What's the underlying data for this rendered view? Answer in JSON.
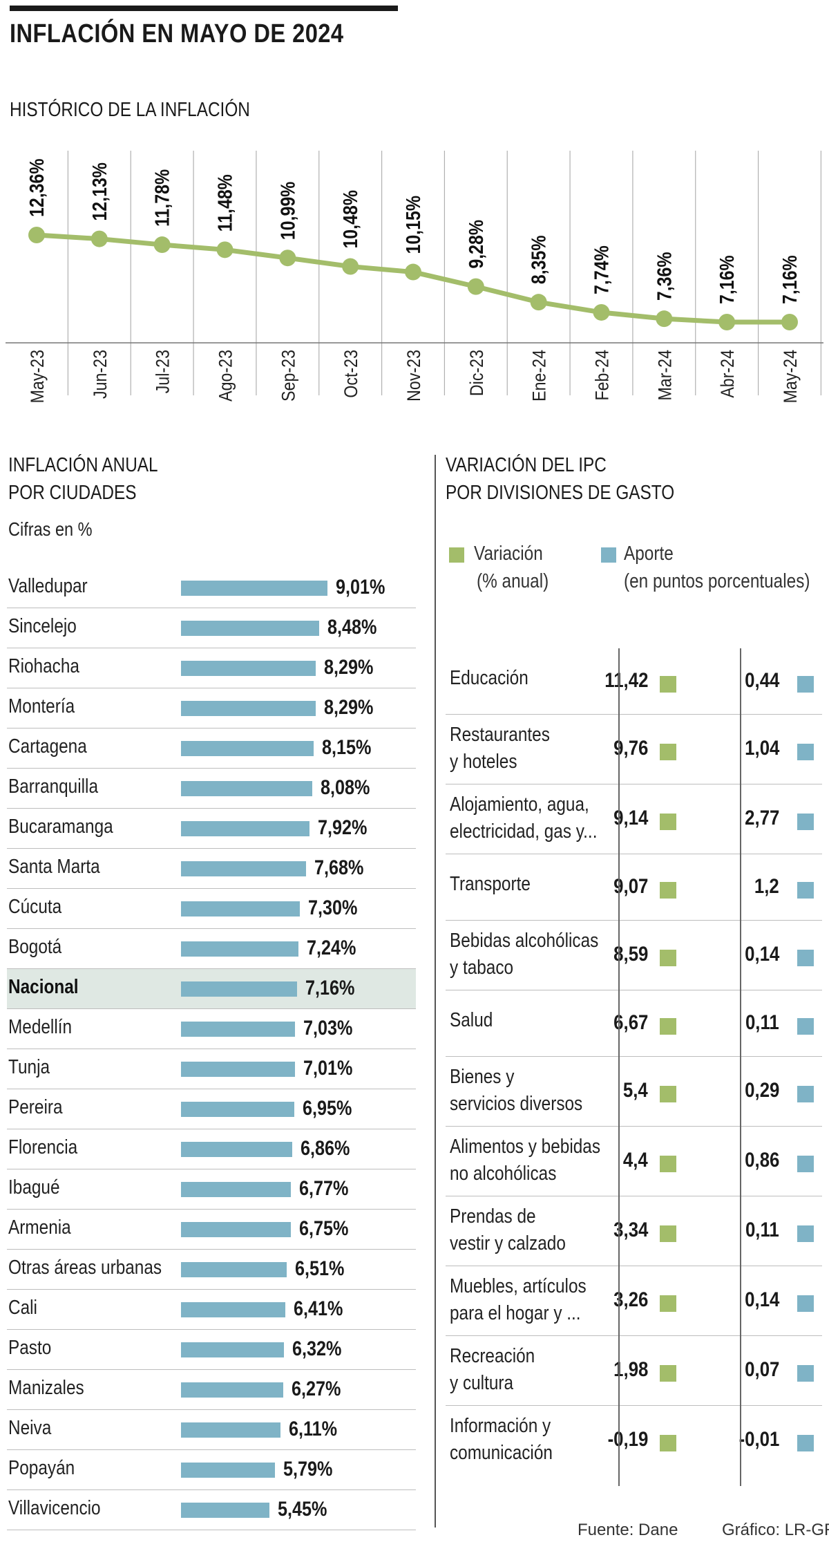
{
  "title": "INFLACIÓN EN MAYO DE 2024",
  "colors": {
    "line": "#a3bd6a",
    "variacion": "#a3bd6a",
    "aporte": "#7fb3c6",
    "highlight": "#dfe8e3"
  },
  "chart_data": [
    {
      "type": "line",
      "title": "HISTÓRICO DE LA INFLACIÓN",
      "categories": [
        "May-23",
        "Jun-23",
        "Jul-23",
        "Ago-23",
        "Sep-23",
        "Oct-23",
        "Nov-23",
        "Dic-23",
        "Ene-24",
        "Feb-24",
        "Mar-24",
        "Abr-24",
        "May-24"
      ],
      "values": [
        12.36,
        12.13,
        11.78,
        11.48,
        10.99,
        10.48,
        10.15,
        9.28,
        8.35,
        7.74,
        7.36,
        7.16,
        7.16
      ],
      "value_labels": [
        "12,36%",
        "12,13%",
        "11,78%",
        "11,48%",
        "10,99%",
        "10,48%",
        "10,15%",
        "9,28%",
        "8,35%",
        "7,74%",
        "7,36%",
        "7,16%",
        "7,16%"
      ],
      "ylim": [
        7.16,
        12.36
      ]
    },
    {
      "type": "bar",
      "title": "INFLACIÓN ANUAL POR CIUDADES",
      "title_lines": [
        "INFLACIÓN ANUAL",
        "POR CIUDADES"
      ],
      "subtitle": "Cifras en %",
      "categories": [
        "Valledupar",
        "Sincelejo",
        "Riohacha",
        "Montería",
        "Cartagena",
        "Barranquilla",
        "Bucaramanga",
        "Santa Marta",
        "Cúcuta",
        "Bogotá",
        "Nacional",
        "Medellín",
        "Tunja",
        "Pereira",
        "Florencia",
        "Ibagué",
        "Armenia",
        "Otras áreas urbanas",
        "Cali",
        "Pasto",
        "Manizales",
        "Neiva",
        "Popayán",
        "Villavicencio"
      ],
      "values": [
        9.01,
        8.48,
        8.29,
        8.29,
        8.15,
        8.08,
        7.92,
        7.68,
        7.3,
        7.24,
        7.16,
        7.03,
        7.01,
        6.95,
        6.86,
        6.77,
        6.75,
        6.51,
        6.41,
        6.32,
        6.27,
        6.11,
        5.79,
        5.45
      ],
      "value_labels": [
        "9,01%",
        "8,48%",
        "8,29%",
        "8,29%",
        "8,15%",
        "8,08%",
        "7,92%",
        "7,68%",
        "7,30%",
        "7,24%",
        "7,16%",
        "7,03%",
        "7,01%",
        "6,95%",
        "6,86%",
        "6,77%",
        "6,75%",
        "6,51%",
        "6,41%",
        "6,32%",
        "6,27%",
        "6,11%",
        "5,79%",
        "5,45%"
      ],
      "highlighted_category": "Nacional"
    },
    {
      "type": "table",
      "title": "VARIACIÓN DEL IPC POR DIVISIONES DE GASTO",
      "title_lines": [
        "VARIACIÓN DEL IPC",
        "POR DIVISIONES DE GASTO"
      ],
      "legend": [
        {
          "name": "Variación",
          "unit": "(% anual)"
        },
        {
          "name": "Aporte",
          "unit": "(en puntos porcentuales)"
        }
      ],
      "rows": [
        {
          "label": [
            "Educación"
          ],
          "variacion": "11,42",
          "aporte": "0,44"
        },
        {
          "label": [
            "Restaurantes",
            "y hoteles"
          ],
          "variacion": "9,76",
          "aporte": "1,04"
        },
        {
          "label": [
            "Alojamiento, agua,",
            "electricidad, gas y..."
          ],
          "variacion": "9,14",
          "aporte": "2,77"
        },
        {
          "label": [
            "Transporte"
          ],
          "variacion": "9,07",
          "aporte": "1,2"
        },
        {
          "label": [
            "Bebidas alcohólicas",
            "y tabaco"
          ],
          "variacion": "8,59",
          "aporte": "0,14"
        },
        {
          "label": [
            "Salud"
          ],
          "variacion": "6,67",
          "aporte": "0,11"
        },
        {
          "label": [
            "Bienes y",
            "servicios diversos"
          ],
          "variacion": "5,4",
          "aporte": "0,29"
        },
        {
          "label": [
            "Alimentos y bebidas",
            "no alcohólicas"
          ],
          "variacion": "4,4",
          "aporte": "0,86"
        },
        {
          "label": [
            "Prendas de",
            "vestir y calzado"
          ],
          "variacion": "3,34",
          "aporte": "0,11"
        },
        {
          "label": [
            "Muebles, artículos",
            "para el hogar y ..."
          ],
          "variacion": "3,26",
          "aporte": "0,14"
        },
        {
          "label": [
            "Recreación",
            "y cultura"
          ],
          "variacion": "1,98",
          "aporte": "0,07"
        },
        {
          "label": [
            "Información y",
            "comunicación"
          ],
          "variacion": "-0,19",
          "aporte": "-0,01"
        }
      ]
    }
  ],
  "footer": {
    "source": "Fuente: Dane",
    "credit": "Gráfico: LR-GR"
  }
}
